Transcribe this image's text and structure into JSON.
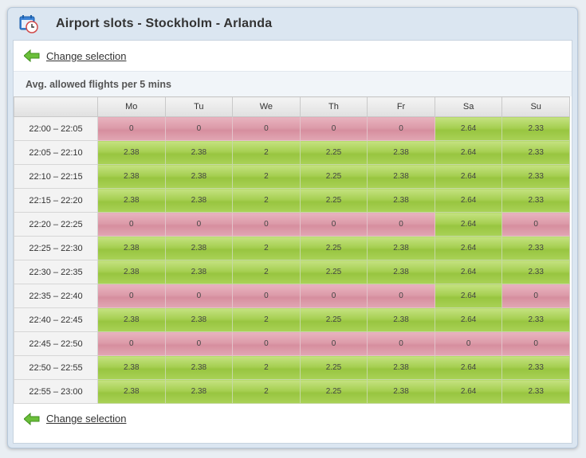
{
  "window": {
    "title": "Airport slots - Stockholm - Arlanda",
    "icon": "calendar-clock-icon"
  },
  "nav": {
    "change_selection": "Change selection",
    "icon": "back-arrow-icon"
  },
  "section": {
    "title": "Avg. allowed flights per 5 mins"
  },
  "colors": {
    "ok": "#a6cf52",
    "blocked": "#dc9ba9"
  },
  "table": {
    "days": [
      "Mo",
      "Tu",
      "We",
      "Th",
      "Fr",
      "Sa",
      "Su"
    ],
    "rows": [
      {
        "time": "22:00 – 22:05",
        "values": [
          "0",
          "0",
          "0",
          "0",
          "0",
          "2.64",
          "2.33"
        ]
      },
      {
        "time": "22:05 – 22:10",
        "values": [
          "2.38",
          "2.38",
          "2",
          "2.25",
          "2.38",
          "2.64",
          "2.33"
        ]
      },
      {
        "time": "22:10 – 22:15",
        "values": [
          "2.38",
          "2.38",
          "2",
          "2.25",
          "2.38",
          "2.64",
          "2.33"
        ]
      },
      {
        "time": "22:15 – 22:20",
        "values": [
          "2.38",
          "2.38",
          "2",
          "2.25",
          "2.38",
          "2.64",
          "2.33"
        ]
      },
      {
        "time": "22:20 – 22:25",
        "values": [
          "0",
          "0",
          "0",
          "0",
          "0",
          "2.64",
          "0"
        ]
      },
      {
        "time": "22:25 – 22:30",
        "values": [
          "2.38",
          "2.38",
          "2",
          "2.25",
          "2.38",
          "2.64",
          "2.33"
        ]
      },
      {
        "time": "22:30 – 22:35",
        "values": [
          "2.38",
          "2.38",
          "2",
          "2.25",
          "2.38",
          "2.64",
          "2.33"
        ]
      },
      {
        "time": "22:35 – 22:40",
        "values": [
          "0",
          "0",
          "0",
          "0",
          "0",
          "2.64",
          "0"
        ]
      },
      {
        "time": "22:40 – 22:45",
        "values": [
          "2.38",
          "2.38",
          "2",
          "2.25",
          "2.38",
          "2.64",
          "2.33"
        ]
      },
      {
        "time": "22:45 – 22:50",
        "values": [
          "0",
          "0",
          "0",
          "0",
          "0",
          "0",
          "0"
        ]
      },
      {
        "time": "22:50 – 22:55",
        "values": [
          "2.38",
          "2.38",
          "2",
          "2.25",
          "2.38",
          "2.64",
          "2.33"
        ]
      },
      {
        "time": "22:55 – 23:00",
        "values": [
          "2.38",
          "2.38",
          "2",
          "2.25",
          "2.38",
          "2.64",
          "2.33"
        ]
      }
    ]
  }
}
